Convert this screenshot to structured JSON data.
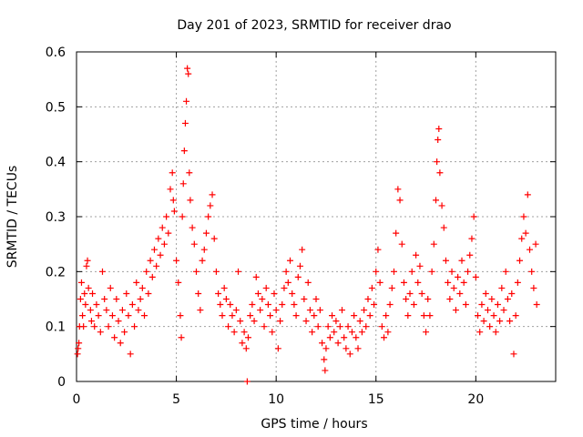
{
  "chart_data": {
    "type": "scatter",
    "title": "Day 201 of 2023, SRMTID for receiver drao",
    "xlabel": "GPS time / hours",
    "ylabel": "SRMTID / TECUs",
    "xlim": [
      0,
      24
    ],
    "ylim": [
      0,
      0.6
    ],
    "xticks": [
      0,
      5,
      10,
      15,
      20
    ],
    "xtick_labels": [
      "0",
      "5",
      "10",
      "15",
      "20"
    ],
    "yticks": [
      0,
      0.1,
      0.2,
      0.3,
      0.4,
      0.5,
      0.6
    ],
    "ytick_labels": [
      "0",
      "0.1",
      "0.2",
      "0.3",
      "0.4",
      "0.5",
      "0.6"
    ],
    "grid": true,
    "marker": "plus",
    "color": "#ff0000",
    "series": [
      {
        "name": "SRMTID",
        "points": [
          [
            0.05,
            0.05
          ],
          [
            0.08,
            0.06
          ],
          [
            0.12,
            0.07
          ],
          [
            0.15,
            0.1
          ],
          [
            0.2,
            0.15
          ],
          [
            0.25,
            0.18
          ],
          [
            0.3,
            0.12
          ],
          [
            0.35,
            0.1
          ],
          [
            0.4,
            0.16
          ],
          [
            0.45,
            0.14
          ],
          [
            0.5,
            0.21
          ],
          [
            0.55,
            0.22
          ],
          [
            0.6,
            0.17
          ],
          [
            0.7,
            0.13
          ],
          [
            0.75,
            0.11
          ],
          [
            0.8,
            0.16
          ],
          [
            0.9,
            0.1
          ],
          [
            1.0,
            0.14
          ],
          [
            1.1,
            0.12
          ],
          [
            1.2,
            0.09
          ],
          [
            1.3,
            0.2
          ],
          [
            1.4,
            0.15
          ],
          [
            1.5,
            0.13
          ],
          [
            1.6,
            0.1
          ],
          [
            1.7,
            0.17
          ],
          [
            1.8,
            0.12
          ],
          [
            1.9,
            0.08
          ],
          [
            2.0,
            0.15
          ],
          [
            2.1,
            0.11
          ],
          [
            2.2,
            0.07
          ],
          [
            2.3,
            0.13
          ],
          [
            2.4,
            0.09
          ],
          [
            2.5,
            0.16
          ],
          [
            2.6,
            0.12
          ],
          [
            2.7,
            0.05
          ],
          [
            2.8,
            0.14
          ],
          [
            2.9,
            0.1
          ],
          [
            3.0,
            0.18
          ],
          [
            3.1,
            0.13
          ],
          [
            3.2,
            0.15
          ],
          [
            3.3,
            0.17
          ],
          [
            3.4,
            0.12
          ],
          [
            3.5,
            0.2
          ],
          [
            3.6,
            0.16
          ],
          [
            3.7,
            0.22
          ],
          [
            3.8,
            0.19
          ],
          [
            3.9,
            0.24
          ],
          [
            4.0,
            0.21
          ],
          [
            4.1,
            0.26
          ],
          [
            4.2,
            0.23
          ],
          [
            4.3,
            0.28
          ],
          [
            4.4,
            0.25
          ],
          [
            4.5,
            0.3
          ],
          [
            4.6,
            0.27
          ],
          [
            4.7,
            0.35
          ],
          [
            4.8,
            0.38
          ],
          [
            4.85,
            0.33
          ],
          [
            4.9,
            0.31
          ],
          [
            5.0,
            0.22
          ],
          [
            5.1,
            0.18
          ],
          [
            5.2,
            0.12
          ],
          [
            5.25,
            0.08
          ],
          [
            5.3,
            0.3
          ],
          [
            5.35,
            0.36
          ],
          [
            5.4,
            0.42
          ],
          [
            5.45,
            0.47
          ],
          [
            5.5,
            0.51
          ],
          [
            5.55,
            0.57
          ],
          [
            5.6,
            0.56
          ],
          [
            5.65,
            0.38
          ],
          [
            5.7,
            0.33
          ],
          [
            5.8,
            0.28
          ],
          [
            5.9,
            0.25
          ],
          [
            6.0,
            0.2
          ],
          [
            6.1,
            0.16
          ],
          [
            6.2,
            0.13
          ],
          [
            6.3,
            0.22
          ],
          [
            6.4,
            0.24
          ],
          [
            6.5,
            0.27
          ],
          [
            6.6,
            0.3
          ],
          [
            6.7,
            0.32
          ],
          [
            6.8,
            0.34
          ],
          [
            6.9,
            0.26
          ],
          [
            7.0,
            0.2
          ],
          [
            7.1,
            0.16
          ],
          [
            7.2,
            0.14
          ],
          [
            7.3,
            0.12
          ],
          [
            7.4,
            0.17
          ],
          [
            7.5,
            0.15
          ],
          [
            7.6,
            0.1
          ],
          [
            7.7,
            0.14
          ],
          [
            7.8,
            0.12
          ],
          [
            7.9,
            0.09
          ],
          [
            8.0,
            0.13
          ],
          [
            8.1,
            0.2
          ],
          [
            8.2,
            0.11
          ],
          [
            8.3,
            0.07
          ],
          [
            8.4,
            0.09
          ],
          [
            8.5,
            0.06
          ],
          [
            8.55,
            0.0
          ],
          [
            8.6,
            0.08
          ],
          [
            8.7,
            0.12
          ],
          [
            8.8,
            0.14
          ],
          [
            8.9,
            0.11
          ],
          [
            9.0,
            0.19
          ],
          [
            9.1,
            0.16
          ],
          [
            9.2,
            0.13
          ],
          [
            9.3,
            0.15
          ],
          [
            9.4,
            0.1
          ],
          [
            9.5,
            0.17
          ],
          [
            9.6,
            0.14
          ],
          [
            9.7,
            0.12
          ],
          [
            9.8,
            0.09
          ],
          [
            9.9,
            0.16
          ],
          [
            10.0,
            0.13
          ],
          [
            10.1,
            0.06
          ],
          [
            10.2,
            0.11
          ],
          [
            10.3,
            0.14
          ],
          [
            10.4,
            0.17
          ],
          [
            10.5,
            0.2
          ],
          [
            10.6,
            0.18
          ],
          [
            10.7,
            0.22
          ],
          [
            10.8,
            0.16
          ],
          [
            10.9,
            0.14
          ],
          [
            11.0,
            0.12
          ],
          [
            11.1,
            0.19
          ],
          [
            11.2,
            0.21
          ],
          [
            11.3,
            0.24
          ],
          [
            11.4,
            0.15
          ],
          [
            11.5,
            0.11
          ],
          [
            11.6,
            0.18
          ],
          [
            11.7,
            0.13
          ],
          [
            11.8,
            0.09
          ],
          [
            11.9,
            0.12
          ],
          [
            12.0,
            0.15
          ],
          [
            12.1,
            0.1
          ],
          [
            12.2,
            0.13
          ],
          [
            12.3,
            0.07
          ],
          [
            12.4,
            0.04
          ],
          [
            12.45,
            0.02
          ],
          [
            12.5,
            0.06
          ],
          [
            12.6,
            0.1
          ],
          [
            12.7,
            0.08
          ],
          [
            12.8,
            0.12
          ],
          [
            12.9,
            0.09
          ],
          [
            13.0,
            0.11
          ],
          [
            13.1,
            0.07
          ],
          [
            13.2,
            0.1
          ],
          [
            13.3,
            0.13
          ],
          [
            13.4,
            0.08
          ],
          [
            13.5,
            0.06
          ],
          [
            13.6,
            0.1
          ],
          [
            13.7,
            0.05
          ],
          [
            13.8,
            0.09
          ],
          [
            13.9,
            0.12
          ],
          [
            14.0,
            0.08
          ],
          [
            14.1,
            0.06
          ],
          [
            14.2,
            0.11
          ],
          [
            14.3,
            0.09
          ],
          [
            14.4,
            0.13
          ],
          [
            14.5,
            0.1
          ],
          [
            14.6,
            0.15
          ],
          [
            14.7,
            0.12
          ],
          [
            14.8,
            0.17
          ],
          [
            14.9,
            0.14
          ],
          [
            15.0,
            0.2
          ],
          [
            15.1,
            0.24
          ],
          [
            15.2,
            0.18
          ],
          [
            15.3,
            0.1
          ],
          [
            15.4,
            0.08
          ],
          [
            15.5,
            0.12
          ],
          [
            15.6,
            0.09
          ],
          [
            15.7,
            0.14
          ],
          [
            15.8,
            0.17
          ],
          [
            15.9,
            0.2
          ],
          [
            16.0,
            0.27
          ],
          [
            16.1,
            0.35
          ],
          [
            16.2,
            0.33
          ],
          [
            16.3,
            0.25
          ],
          [
            16.4,
            0.18
          ],
          [
            16.5,
            0.15
          ],
          [
            16.6,
            0.12
          ],
          [
            16.7,
            0.16
          ],
          [
            16.8,
            0.2
          ],
          [
            16.9,
            0.14
          ],
          [
            17.0,
            0.23
          ],
          [
            17.1,
            0.18
          ],
          [
            17.2,
            0.21
          ],
          [
            17.3,
            0.16
          ],
          [
            17.4,
            0.12
          ],
          [
            17.5,
            0.09
          ],
          [
            17.6,
            0.15
          ],
          [
            17.7,
            0.12
          ],
          [
            17.8,
            0.2
          ],
          [
            17.9,
            0.25
          ],
          [
            18.0,
            0.33
          ],
          [
            18.05,
            0.4
          ],
          [
            18.1,
            0.44
          ],
          [
            18.15,
            0.46
          ],
          [
            18.2,
            0.38
          ],
          [
            18.3,
            0.32
          ],
          [
            18.4,
            0.28
          ],
          [
            18.5,
            0.22
          ],
          [
            18.6,
            0.18
          ],
          [
            18.7,
            0.15
          ],
          [
            18.8,
            0.2
          ],
          [
            18.9,
            0.17
          ],
          [
            19.0,
            0.13
          ],
          [
            19.1,
            0.19
          ],
          [
            19.2,
            0.16
          ],
          [
            19.3,
            0.22
          ],
          [
            19.4,
            0.18
          ],
          [
            19.5,
            0.14
          ],
          [
            19.6,
            0.2
          ],
          [
            19.7,
            0.23
          ],
          [
            19.8,
            0.26
          ],
          [
            19.9,
            0.3
          ],
          [
            20.0,
            0.19
          ],
          [
            20.1,
            0.12
          ],
          [
            20.2,
            0.09
          ],
          [
            20.3,
            0.14
          ],
          [
            20.4,
            0.11
          ],
          [
            20.5,
            0.16
          ],
          [
            20.6,
            0.13
          ],
          [
            20.7,
            0.1
          ],
          [
            20.8,
            0.15
          ],
          [
            20.9,
            0.12
          ],
          [
            21.0,
            0.09
          ],
          [
            21.1,
            0.14
          ],
          [
            21.2,
            0.11
          ],
          [
            21.3,
            0.17
          ],
          [
            21.4,
            0.13
          ],
          [
            21.5,
            0.2
          ],
          [
            21.6,
            0.15
          ],
          [
            21.7,
            0.11
          ],
          [
            21.8,
            0.16
          ],
          [
            21.9,
            0.05
          ],
          [
            22.0,
            0.12
          ],
          [
            22.1,
            0.18
          ],
          [
            22.2,
            0.22
          ],
          [
            22.3,
            0.26
          ],
          [
            22.4,
            0.3
          ],
          [
            22.5,
            0.27
          ],
          [
            22.6,
            0.34
          ],
          [
            22.7,
            0.24
          ],
          [
            22.8,
            0.2
          ],
          [
            22.9,
            0.17
          ],
          [
            23.0,
            0.25
          ],
          [
            23.05,
            0.14
          ]
        ]
      }
    ]
  }
}
